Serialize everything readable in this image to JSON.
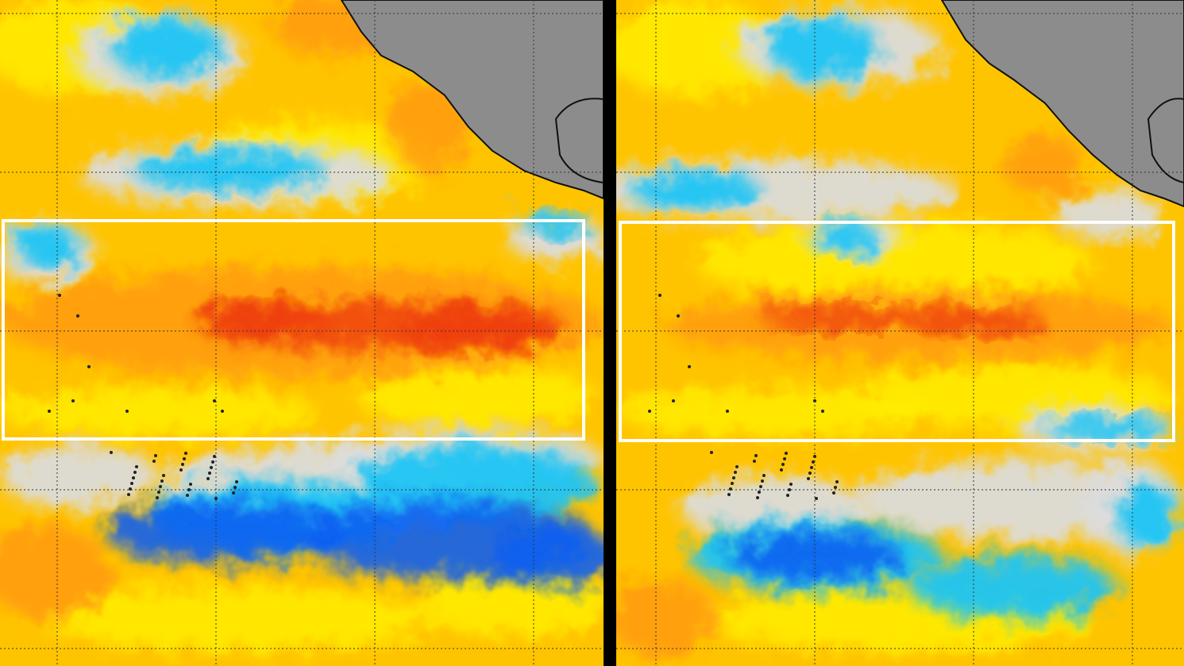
{
  "panels": [
    {
      "id": "left",
      "equatorial_warm_intensity": 1.0,
      "cold_south_intensity": 1.0
    },
    {
      "id": "right",
      "equatorial_warm_intensity": 0.6,
      "cold_south_intensity": 0.7
    }
  ],
  "colors": {
    "warm_base": "#ffc400",
    "warm_light": "#ffee00",
    "warm_orange": "#ff9a10",
    "hot": "#ee3a10",
    "cool_light": "#1fc4f5",
    "cool_dark": "#0a5ef0",
    "neutral": "#dcdcdc",
    "land": "#8c8c8c",
    "box": "#ffffff",
    "grid": "#333333"
  }
}
